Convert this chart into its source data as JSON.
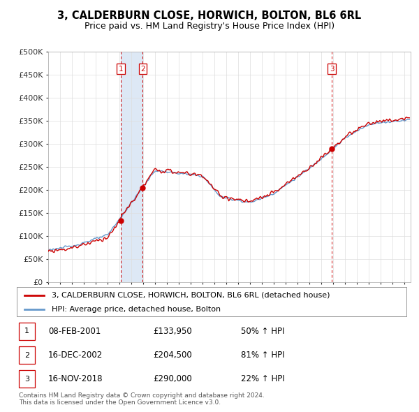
{
  "title": "3, CALDERBURN CLOSE, HORWICH, BOLTON, BL6 6RL",
  "subtitle": "Price paid vs. HM Land Registry's House Price Index (HPI)",
  "ylabel_ticks": [
    "£0",
    "£50K",
    "£100K",
    "£150K",
    "£200K",
    "£250K",
    "£300K",
    "£350K",
    "£400K",
    "£450K",
    "£500K"
  ],
  "ytick_values": [
    0,
    50000,
    100000,
    150000,
    200000,
    250000,
    300000,
    350000,
    400000,
    450000,
    500000
  ],
  "ylim": [
    0,
    500000
  ],
  "xlim_start": 1995.0,
  "xlim_end": 2025.5,
  "sale_dates": [
    2001.1,
    2002.96,
    2018.88
  ],
  "sale_prices": [
    133950,
    204500,
    290000
  ],
  "sale_labels": [
    "1",
    "2",
    "3"
  ],
  "legend_line1": "3, CALDERBURN CLOSE, HORWICH, BOLTON, BL6 6RL (detached house)",
  "legend_line2": "HPI: Average price, detached house, Bolton",
  "table_data": [
    [
      "1",
      "08-FEB-2001",
      "£133,950",
      "50% ↑ HPI"
    ],
    [
      "2",
      "16-DEC-2002",
      "£204,500",
      "81% ↑ HPI"
    ],
    [
      "3",
      "16-NOV-2018",
      "£290,000",
      "22% ↑ HPI"
    ]
  ],
  "footnote": "Contains HM Land Registry data © Crown copyright and database right 2024.\nThis data is licensed under the Open Government Licence v3.0.",
  "house_color": "#cc0000",
  "hpi_color": "#6699cc",
  "vline_color": "#cc0000",
  "shade_color": "#dde8f5",
  "background_color": "#ffffff",
  "grid_color": "#dddddd"
}
